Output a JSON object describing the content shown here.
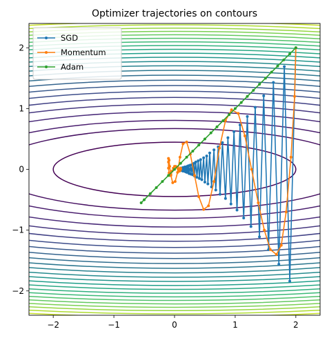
{
  "chart_data": {
    "type": "line",
    "title": "Optimizer trajectories on contours",
    "xlabel": "",
    "ylabel": "",
    "xlim": [
      -2.4,
      2.4
    ],
    "ylim": [
      -2.4,
      2.4
    ],
    "xticks": [
      -2,
      -1,
      0,
      1,
      2
    ],
    "yticks": [
      -2,
      -1,
      0,
      1,
      2
    ],
    "xtick_labels": [
      "−2",
      "−1",
      "0",
      "1",
      "2"
    ],
    "ytick_labels": [
      "−2",
      "−1",
      "0",
      "1",
      "2"
    ],
    "grid": false,
    "legend_position": "top-left",
    "contours": {
      "function": "f(x, y) = 0.5*x^2 + 10*y^2 (elliptical bowl, minimum at origin)",
      "levels_fx": [
        2.0,
        4.5,
        6.5,
        9,
        11.5,
        14,
        16.5,
        19,
        21.5,
        24,
        26.5,
        29,
        31.5,
        34,
        36.5,
        39,
        41.5,
        44,
        46.5,
        49,
        51.5,
        54,
        56.5,
        59,
        61.5,
        64
      ],
      "colormap": "viridis"
    },
    "series": [
      {
        "name": "SGD",
        "color": "#1f77b4",
        "x": [
          2.0,
          1.9,
          1.81,
          1.72,
          1.63,
          1.55,
          1.47,
          1.4,
          1.33,
          1.26,
          1.2,
          1.14,
          1.08,
          1.03,
          0.98,
          0.93,
          0.88,
          0.84,
          0.79,
          0.75,
          0.72,
          0.68,
          0.65,
          0.61,
          0.58,
          0.55,
          0.53,
          0.5,
          0.48,
          0.45,
          0.43,
          0.41,
          0.39,
          0.37,
          0.35,
          0.33,
          0.32,
          0.3,
          0.29,
          0.27,
          0.26,
          0.24,
          0.23,
          0.22,
          0.21,
          0.2,
          0.19,
          0.18,
          0.17,
          0.16,
          0.15,
          0.14,
          0.14,
          0.13,
          0.12,
          0.12,
          0.11,
          0.1,
          0.1,
          0.09,
          0.09
        ],
        "y": [
          2.0,
          -1.84,
          1.69,
          -1.56,
          1.43,
          -1.32,
          1.21,
          -1.11,
          1.02,
          -0.94,
          0.87,
          -0.8,
          0.73,
          -0.67,
          0.62,
          -0.57,
          0.52,
          -0.48,
          0.44,
          -0.41,
          0.37,
          -0.34,
          0.32,
          -0.29,
          0.27,
          -0.24,
          0.22,
          -0.21,
          0.19,
          -0.17,
          0.16,
          -0.15,
          0.14,
          -0.13,
          0.12,
          -0.11,
          0.1,
          -0.09,
          0.08,
          -0.08,
          0.07,
          -0.07,
          0.06,
          -0.05,
          0.05,
          -0.05,
          0.04,
          -0.04,
          0.04,
          -0.03,
          0.03,
          -0.03,
          0.03,
          -0.02,
          0.02,
          -0.02,
          0.02,
          -0.02,
          0.02,
          -0.01,
          0.01
        ]
      },
      {
        "name": "Momentum",
        "color": "#ff7f0e",
        "x": [
          2.0,
          1.98,
          1.92,
          1.84,
          1.76,
          1.68,
          1.58,
          1.48,
          1.38,
          1.27,
          1.16,
          1.05,
          0.94,
          0.84,
          0.74,
          0.65,
          0.56,
          0.48,
          0.4,
          0.33,
          0.26,
          0.2,
          0.14,
          0.09,
          0.05,
          0.01,
          -0.03,
          -0.06,
          -0.08,
          -0.09,
          -0.1,
          -0.1,
          -0.1,
          -0.09,
          -0.08,
          -0.06,
          -0.04,
          -0.02,
          0.0,
          0.02,
          0.04,
          0.06,
          0.07,
          0.08,
          0.09,
          0.1,
          0.1,
          0.1,
          0.09,
          0.08
        ],
        "y": [
          2.0,
          1.2,
          0.2,
          -0.7,
          -1.25,
          -1.4,
          -1.32,
          -1.0,
          -0.55,
          0.0,
          0.55,
          0.92,
          0.98,
          0.8,
          0.35,
          -0.2,
          -0.6,
          -0.66,
          -0.45,
          -0.1,
          0.25,
          0.45,
          0.42,
          0.2,
          -0.05,
          -0.2,
          -0.22,
          -0.1,
          0.05,
          0.15,
          0.18,
          0.12,
          0.02,
          -0.06,
          -0.1,
          -0.08,
          -0.03,
          0.02,
          0.05,
          0.05,
          0.03,
          0.0,
          -0.02,
          -0.03,
          -0.02,
          0.0,
          0.01,
          0.02,
          0.01,
          0.0
        ]
      },
      {
        "name": "Adam",
        "color": "#2ca02c",
        "x": [
          2.0,
          1.9,
          1.8,
          1.7,
          1.6,
          1.5,
          1.4,
          1.3,
          1.2,
          1.1,
          1.0,
          0.9,
          0.8,
          0.7,
          0.6,
          0.5,
          0.4,
          0.3,
          0.2,
          0.1,
          0.0,
          -0.1,
          -0.2,
          -0.3,
          -0.4,
          -0.5,
          -0.55
        ],
        "y": [
          2.0,
          1.9,
          1.8,
          1.7,
          1.6,
          1.5,
          1.4,
          1.3,
          1.2,
          1.1,
          1.0,
          0.9,
          0.8,
          0.7,
          0.6,
          0.5,
          0.4,
          0.3,
          0.2,
          0.1,
          0.0,
          -0.1,
          -0.2,
          -0.3,
          -0.4,
          -0.5,
          -0.55
        ]
      }
    ]
  }
}
